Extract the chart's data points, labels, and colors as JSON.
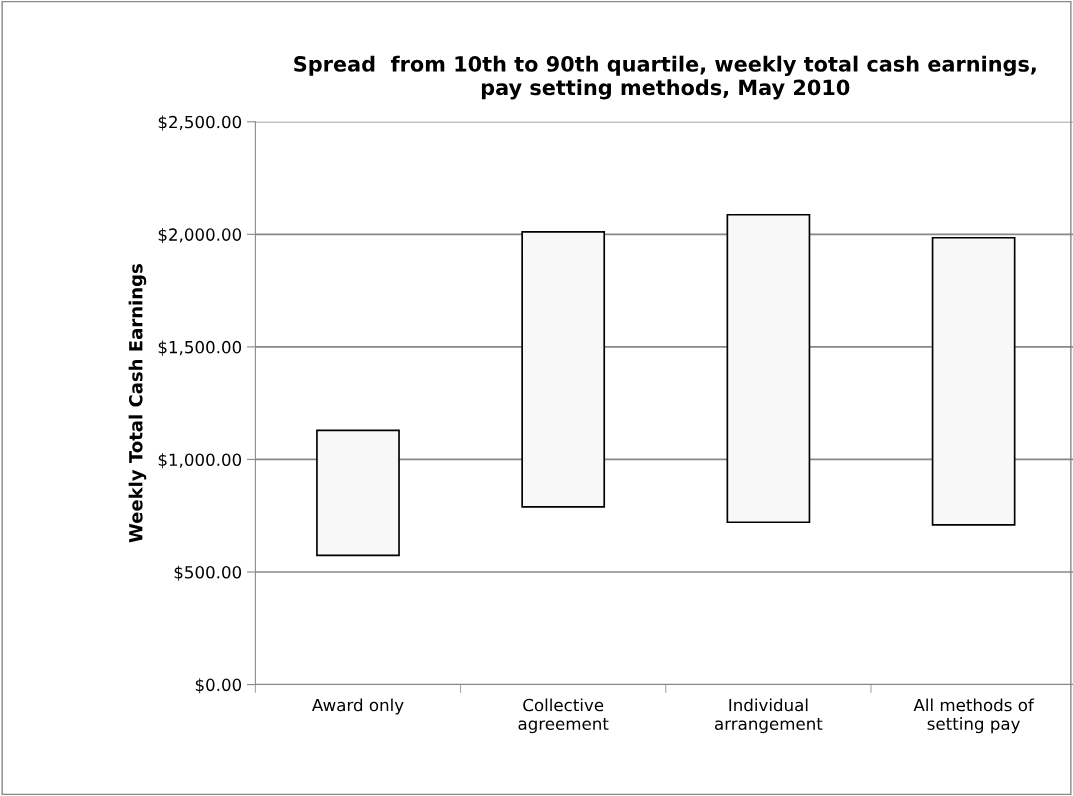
{
  "chart_data": {
    "type": "bar",
    "title": "Spread  from 10th to 90th quartile, weekly total cash earnings,\npay setting methods, May 2010",
    "ylabel": "Weekly Total Cash Earnings",
    "categories": [
      "Award only",
      "Collective\nagreement",
      "Individual\narrangement",
      "All methods of\nsetting pay"
    ],
    "base": [
      574,
      789,
      721,
      709
    ],
    "values": [
      555,
      1222,
      1366,
      1276
    ],
    "color": "#f8f8f8",
    "ylim": [
      0,
      2500
    ],
    "yticks": [
      {
        "value": 0,
        "label": "$0.00"
      },
      {
        "value": 500,
        "label": "$500.00"
      },
      {
        "value": 1000,
        "label": "$1,000.00"
      },
      {
        "value": 1500,
        "label": "$1,500.00"
      },
      {
        "value": 2000,
        "label": "$2,000.00"
      },
      {
        "value": 2500,
        "label": "$2,500.00"
      }
    ],
    "grid": "y"
  }
}
